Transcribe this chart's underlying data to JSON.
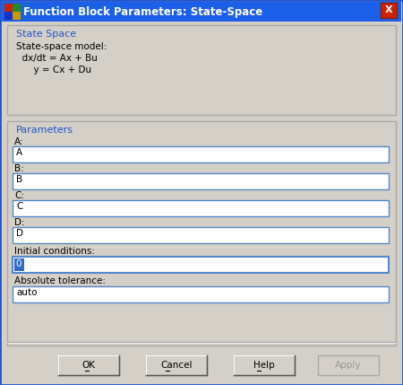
{
  "title": "Function Block Parameters: State-Space",
  "title_bar_color": "#1c5fe8",
  "title_text_color": "#ffffff",
  "bg_color": "#d4cfc7",
  "dialog_bg": "#d4cfc7",
  "section1_label": "State Space",
  "section1_color": "#2255cc",
  "model_text_line1": "State-space model:",
  "model_text_line2": "  dx/dt = Ax + Bu",
  "model_text_line3": "      y = Cx + Du",
  "section2_label": "Parameters",
  "section2_color": "#2255cc",
  "fields": [
    {
      "label": "A:",
      "value": "A"
    },
    {
      "label": "B:",
      "value": "B"
    },
    {
      "label": "C:",
      "value": "C"
    },
    {
      "label": "D:",
      "value": "D"
    }
  ],
  "initial_conditions_label": "Initial conditions:",
  "initial_conditions_value": "0",
  "tolerance_label": "Absolute tolerance:",
  "tolerance_value": "auto",
  "buttons": [
    {
      "label": "OK",
      "ul": 0,
      "enabled": true
    },
    {
      "label": "Cancel",
      "ul": 0,
      "enabled": true
    },
    {
      "label": "Help",
      "ul": 0,
      "enabled": true
    },
    {
      "label": "Apply",
      "ul": -1,
      "enabled": false
    }
  ],
  "field_bg": "#ffffff",
  "field_border": "#5588cc",
  "button_bg": "#d4cfc7",
  "outer_border_color": "#2255cc",
  "font_size": 8.0,
  "title_font_size": 8.5
}
